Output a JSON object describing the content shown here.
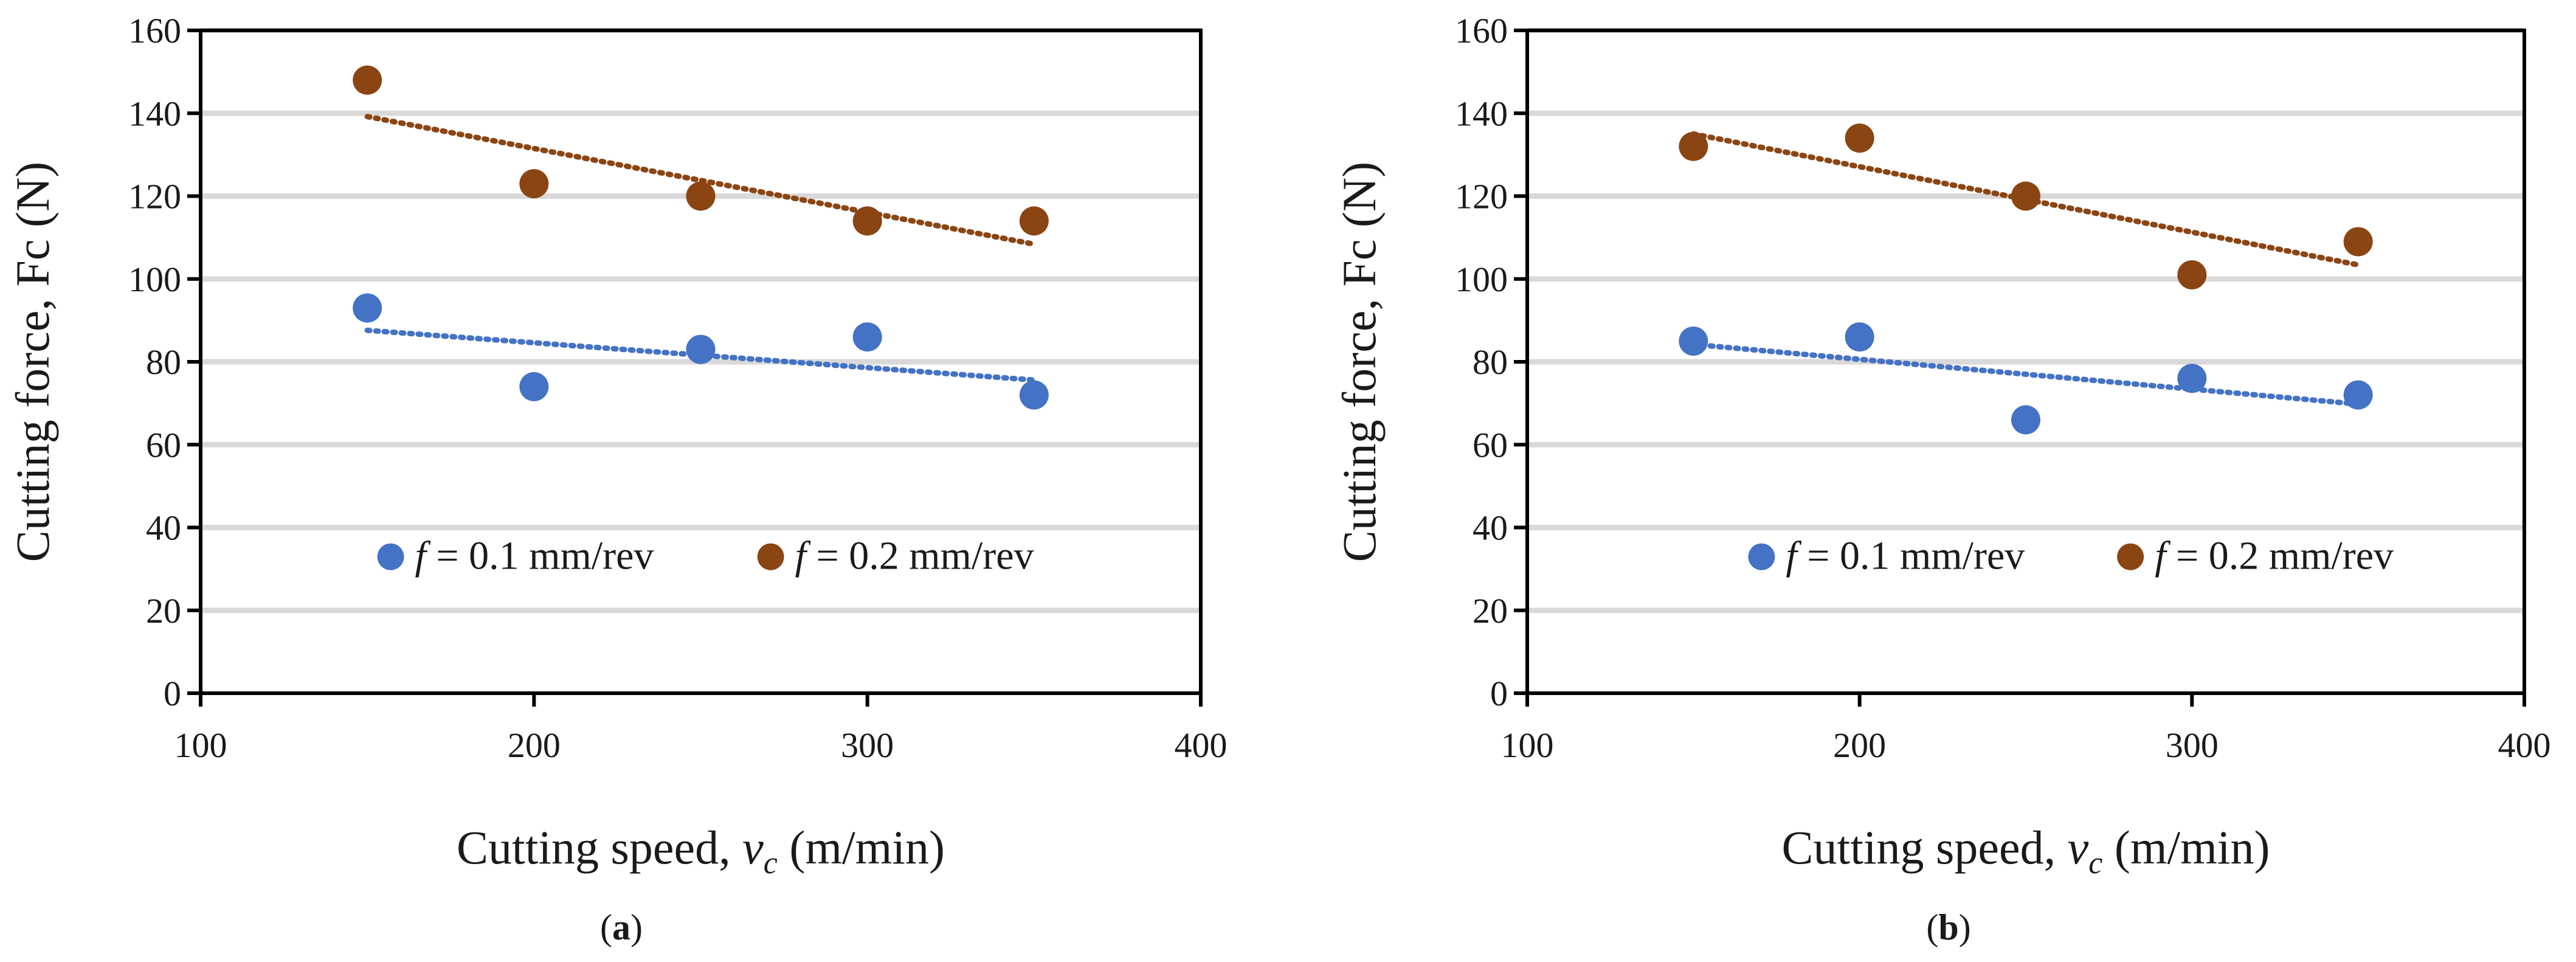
{
  "chart_data": [
    {
      "type": "scatter",
      "panel_label": "a",
      "xlabel": "Cutting speed, ",
      "xlabel_var": "v",
      "xlabel_sub": "c",
      "xlabel_unit": " (m/min)",
      "ylabel": "Cutting force, Fc (N)",
      "xlim": [
        100,
        400
      ],
      "ylim": [
        0,
        160
      ],
      "xticks": [
        100,
        200,
        300,
        400
      ],
      "yticks": [
        0,
        20,
        40,
        60,
        80,
        100,
        120,
        140,
        160
      ],
      "grid": true,
      "legend_position": "bottom-center",
      "series": [
        {
          "name": "f = 0.1 mm/rev",
          "legend_var": "f",
          "legend_rest": " = 0.1 mm/rev",
          "color": "#4472C4",
          "trendline_color": "#4472C4",
          "x": [
            150,
            200,
            250,
            300,
            350
          ],
          "y": [
            93,
            74,
            83,
            86,
            72
          ],
          "trendline": "linear"
        },
        {
          "name": "f = 0.2 mm/rev",
          "legend_var": "f",
          "legend_rest": " = 0.2 mm/rev",
          "color": "#8B4513",
          "trendline_color": "#8B4513",
          "x": [
            150,
            200,
            250,
            300,
            350
          ],
          "y": [
            148,
            123,
            120,
            114,
            114
          ],
          "trendline": "linear"
        }
      ]
    },
    {
      "type": "scatter",
      "panel_label": "b",
      "xlabel": "Cutting speed, ",
      "xlabel_var": "v",
      "xlabel_sub": "c",
      "xlabel_unit": " (m/min)",
      "ylabel": "Cutting force, Fc (N)",
      "xlim": [
        100,
        400
      ],
      "ylim": [
        0,
        160
      ],
      "xticks": [
        100,
        200,
        300,
        400
      ],
      "yticks": [
        0,
        20,
        40,
        60,
        80,
        100,
        120,
        140,
        160
      ],
      "grid": true,
      "legend_position": "bottom-center",
      "series": [
        {
          "name": "f = 0.1 mm/rev",
          "legend_var": "f",
          "legend_rest": " = 0.1 mm/rev",
          "color": "#4472C4",
          "trendline_color": "#4472C4",
          "x": [
            150,
            200,
            250,
            300,
            350
          ],
          "y": [
            85,
            86,
            66,
            76,
            72
          ],
          "trendline": "linear"
        },
        {
          "name": "f = 0.2 mm/rev",
          "legend_var": "f",
          "legend_rest": " = 0.2 mm/rev",
          "color": "#8B4513",
          "trendline_color": "#8B4513",
          "x": [
            150,
            200,
            250,
            300,
            350
          ],
          "y": [
            132,
            134,
            120,
            101,
            109
          ],
          "trendline": "linear"
        }
      ]
    }
  ],
  "captions": [
    "a",
    "b"
  ],
  "colors": {
    "grid": "#d9d9d9",
    "axis": "#000000"
  }
}
